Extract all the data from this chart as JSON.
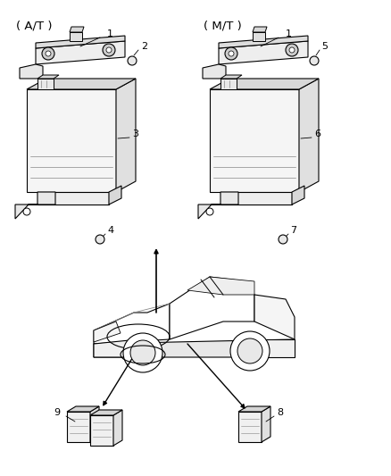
{
  "background_color": "#ffffff",
  "line_color": "#000000",
  "labels": {
    "AT": "( A/T )",
    "MT": "( M/T )",
    "n1": "1",
    "n2": "2",
    "n3": "3",
    "n4": "4",
    "n5": "5",
    "n6": "6",
    "n7": "7",
    "n8": "8",
    "n9": "9"
  },
  "figsize": [
    4.38,
    5.33
  ],
  "dpi": 100
}
